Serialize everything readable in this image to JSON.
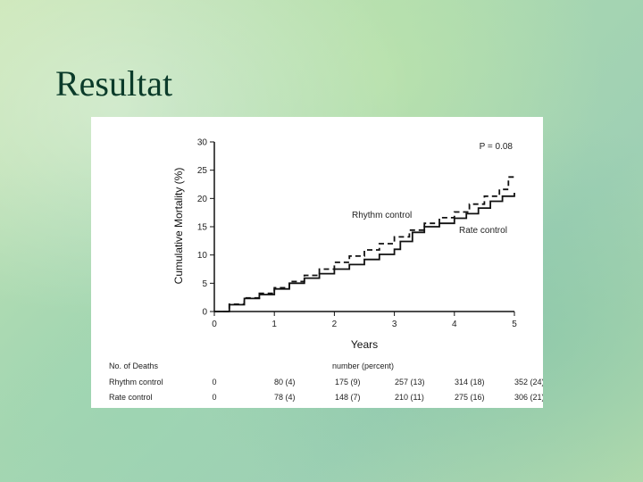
{
  "slide": {
    "title": "Resultat"
  },
  "chart_data": {
    "type": "line",
    "title": "",
    "xlabel": "Years",
    "ylabel": "Cumulative Mortality (%)",
    "xlim": [
      0,
      5
    ],
    "ylim": [
      0,
      30
    ],
    "x_ticks": [
      "0",
      "1",
      "2",
      "3",
      "4",
      "5"
    ],
    "y_ticks": [
      "0",
      "5",
      "10",
      "15",
      "20",
      "25",
      "30"
    ],
    "p_value": "P = 0.08",
    "series": [
      {
        "name": "Rhythm control",
        "style": "dashed",
        "color": "#111111",
        "x": [
          0,
          0.25,
          0.5,
          0.75,
          1.0,
          1.25,
          1.5,
          1.75,
          2.0,
          2.25,
          2.5,
          2.75,
          3.0,
          3.25,
          3.5,
          3.75,
          4.0,
          4.25,
          4.5,
          4.75,
          4.9,
          5.0
        ],
        "y": [
          0,
          1.3,
          2.4,
          3.2,
          4.2,
          5.3,
          6.4,
          7.5,
          8.7,
          9.8,
          10.9,
          12.0,
          13.2,
          14.4,
          15.6,
          16.6,
          17.6,
          19.0,
          20.4,
          21.6,
          23.8,
          23.9
        ]
      },
      {
        "name": "Rate control",
        "style": "solid",
        "color": "#111111",
        "x": [
          0,
          0.25,
          0.5,
          0.75,
          1.0,
          1.25,
          1.5,
          1.75,
          2.0,
          2.25,
          2.5,
          2.75,
          3.0,
          3.1,
          3.3,
          3.5,
          3.75,
          4.0,
          4.2,
          4.4,
          4.6,
          4.8,
          5.0
        ],
        "y": [
          0,
          1.2,
          2.3,
          3.0,
          4.0,
          5.0,
          5.9,
          6.7,
          7.5,
          8.3,
          9.2,
          10.1,
          11.0,
          12.4,
          14.0,
          15.0,
          15.6,
          16.5,
          17.3,
          18.3,
          19.5,
          20.4,
          21.0
        ]
      }
    ],
    "risk_table": {
      "header_label": "No. of Deaths",
      "header_value": "number (percent)",
      "rows": [
        {
          "label": "Rhythm control",
          "values": [
            "0",
            "80 (4)",
            "175 (9)",
            "257 (13)",
            "314 (18)",
            "352 (24)"
          ]
        },
        {
          "label": "Rate control",
          "values": [
            "0",
            "78 (4)",
            "148 (7)",
            "210 (11)",
            "275 (16)",
            "306 (21)"
          ]
        }
      ]
    }
  }
}
